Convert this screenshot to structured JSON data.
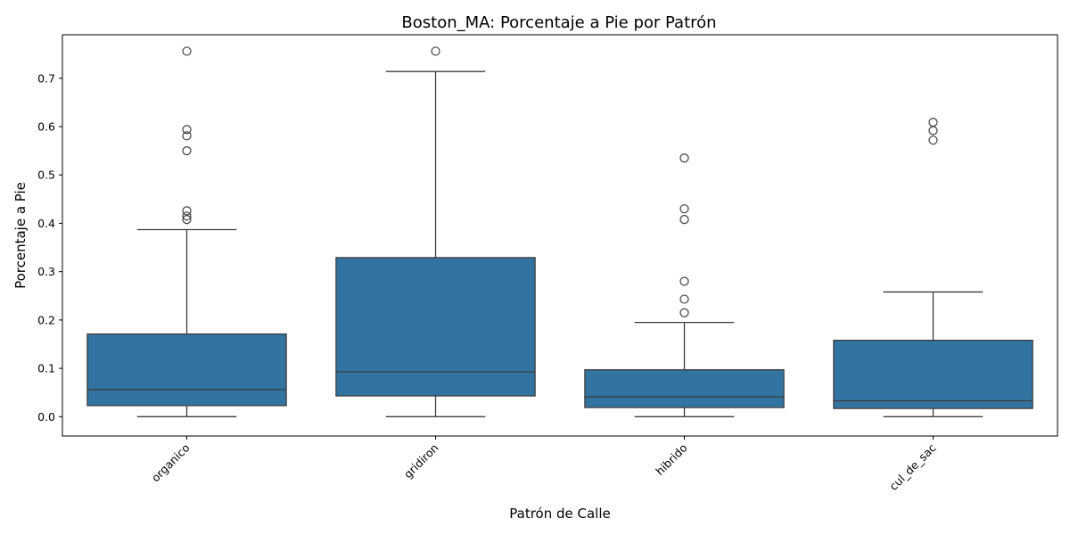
{
  "chart_data": {
    "type": "box",
    "title": "Boston_MA: Porcentaje a Pie por Patrón",
    "xlabel": "Patrón de Calle",
    "ylabel": "Porcentaje a Pie",
    "ylim": [
      -0.04,
      0.79
    ],
    "yticks": [
      0.0,
      0.1,
      0.2,
      0.3,
      0.4,
      0.5,
      0.6,
      0.7
    ],
    "ytick_labels": [
      "0.0",
      "0.1",
      "0.2",
      "0.3",
      "0.4",
      "0.5",
      "0.6",
      "0.7"
    ],
    "grid": false,
    "legend": "none",
    "box_color": "#3274a1",
    "line_color": "#3d3d3d",
    "categories": [
      "organico",
      "gridiron",
      "hibrido",
      "cul_de_sac"
    ],
    "boxes": [
      {
        "category": "organico",
        "whisker_low": 0.0,
        "q1": 0.023,
        "median": 0.056,
        "q3": 0.171,
        "whisker_high": 0.387,
        "outliers": [
          0.408,
          0.415,
          0.426,
          0.55,
          0.581,
          0.594,
          0.756
        ]
      },
      {
        "category": "gridiron",
        "whisker_low": 0.0,
        "q1": 0.043,
        "median": 0.093,
        "q3": 0.329,
        "whisker_high": 0.714,
        "outliers": [
          0.756
        ]
      },
      {
        "category": "hibrido",
        "whisker_low": 0.0,
        "q1": 0.019,
        "median": 0.041,
        "q3": 0.097,
        "whisker_high": 0.195,
        "outliers": [
          0.215,
          0.243,
          0.28,
          0.408,
          0.43,
          0.535
        ]
      },
      {
        "category": "cul_de_sac",
        "whisker_low": 0.0,
        "q1": 0.017,
        "median": 0.033,
        "q3": 0.158,
        "whisker_high": 0.258,
        "outliers": [
          0.572,
          0.592,
          0.609
        ]
      }
    ]
  }
}
